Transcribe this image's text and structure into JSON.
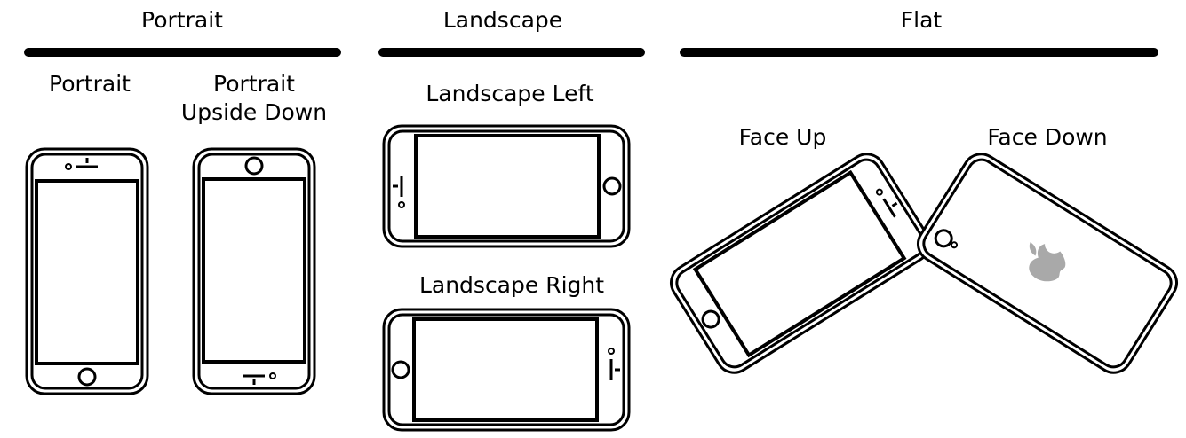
{
  "groups": {
    "portrait": {
      "title": "Portrait",
      "items": {
        "portrait": "Portrait",
        "upside_down": "Portrait\nUpside Down"
      }
    },
    "landscape": {
      "title": "Landscape",
      "items": {
        "left": "Landscape Left",
        "right": "Landscape Right"
      }
    },
    "flat": {
      "title": "Flat",
      "items": {
        "face_up": "Face Up",
        "face_down": "Face Down"
      }
    }
  },
  "colors": {
    "ink": "#000000",
    "logo": "#a9a9a9",
    "background": "#ffffff"
  },
  "icons": {
    "portrait": "phone-front-icon",
    "upside_down": "phone-front-upside-down-icon",
    "landscape_left": "phone-landscape-left-icon",
    "landscape_right": "phone-landscape-right-icon",
    "face_up": "phone-face-up-icon",
    "face_down": "phone-face-down-apple-logo-icon"
  }
}
